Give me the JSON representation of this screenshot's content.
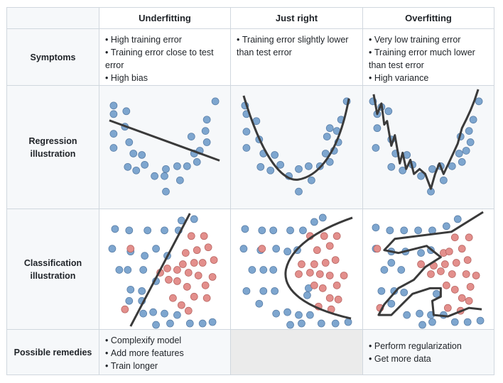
{
  "headers": {
    "underfitting": "Underfitting",
    "just_right": "Just right",
    "overfitting": "Overfitting"
  },
  "rows": {
    "symptoms": "Symptoms",
    "regression": "Regression illustration",
    "classification": "Classification illustration",
    "remedies": "Possible remedies"
  },
  "symptoms": {
    "underfitting": [
      "High training error",
      "Training error close to test error",
      "High bias"
    ],
    "just_right": [
      "Training error slightly lower than test error"
    ],
    "overfitting": [
      "Very low training error",
      "Training error much lower than test error",
      "High variance"
    ]
  },
  "remedies": {
    "underfitting": [
      "Complexify model",
      "Add more features",
      "Train longer"
    ],
    "overfitting": [
      "Perform regularization",
      "Get more data"
    ]
  },
  "colors": {
    "blue_point": "#7ea6cf",
    "red_point": "#e38f8c",
    "curve": "#3a3a3a",
    "border": "#d0d7de"
  }
}
